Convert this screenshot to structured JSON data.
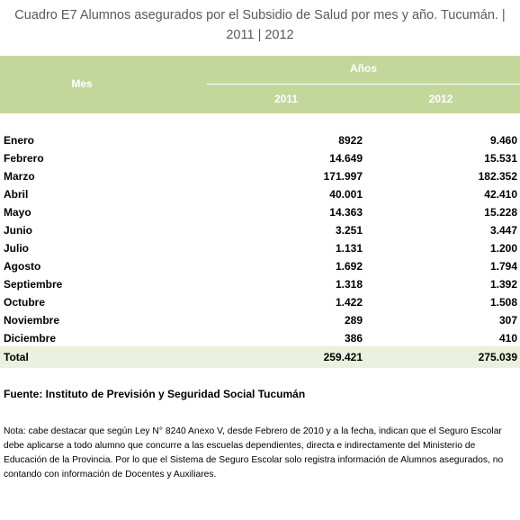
{
  "title": "Cuadro E7  Alumnos asegurados por el Subsidio de  Salud  por mes y año. Tucumán. | 2011 | 2012",
  "table": {
    "header": {
      "mes": "Mes",
      "group": "Años",
      "years": [
        "2011",
        "2012"
      ]
    },
    "rows": [
      [
        "Enero",
        "8922",
        "9.460"
      ],
      [
        "Febrero",
        "14.649",
        "15.531"
      ],
      [
        "Marzo",
        "171.997",
        "182.352"
      ],
      [
        "Abril",
        "40.001",
        "42.410"
      ],
      [
        "Mayo",
        "14.363",
        "15.228"
      ],
      [
        "Junio",
        "3.251",
        "3.447"
      ],
      [
        "Julio",
        "1.131",
        "1.200"
      ],
      [
        "Agosto",
        "1.692",
        "1.794"
      ],
      [
        "Septiembre",
        "1.318",
        "1.392"
      ],
      [
        "Octubre",
        "1.422",
        "1.508"
      ],
      [
        "Noviembre",
        "289",
        "307"
      ],
      [
        "Diciembre",
        "386",
        "410"
      ]
    ],
    "total": [
      "Total",
      "259.421",
      "275.039"
    ]
  },
  "source": "Fuente: Instituto de Previsión y Seguridad Social Tucumán",
  "note": "Nota: cabe destacar que según Ley N° 8240 Anexo V, desde Febrero de 2010 y a la fecha, indican que el Seguro Escolar debe aplicarse a todo alumno que concurre a las escuelas dependientes, directa e indirectamente del Ministerio de Educación de la Provincia. Por lo que el Sistema de Seguro Escolar solo registra información de Alumnos asegurados, no contando con información de Docentes y Auxiliares."
}
